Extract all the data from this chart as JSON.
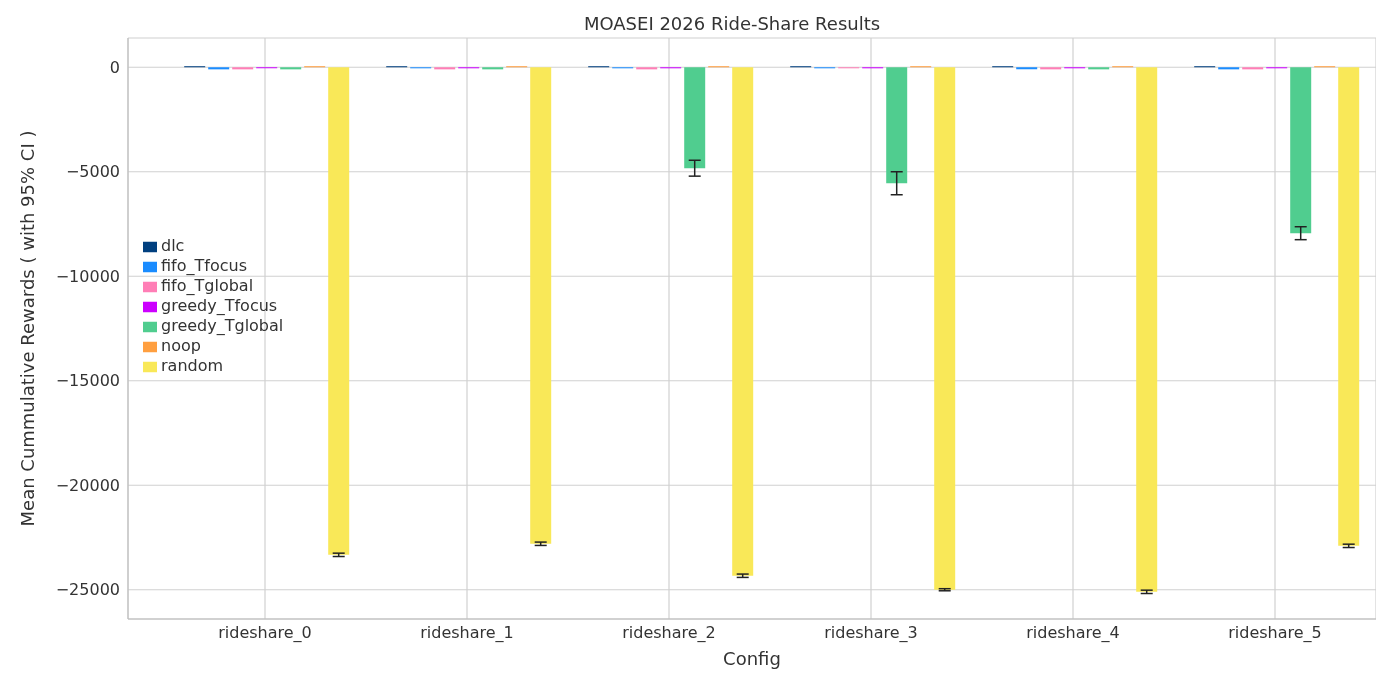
{
  "chart_data": {
    "type": "bar",
    "title": "MOASEI 2026 Ride-Share Results",
    "xlabel": "Config",
    "ylabel": "Mean Cummulative Rewards ( with 95% CI )",
    "categories": [
      "rideshare_0",
      "rideshare_1",
      "rideshare_2",
      "rideshare_3",
      "rideshare_4",
      "rideshare_5"
    ],
    "series": [
      {
        "name": "dlc",
        "color": "#003f7f",
        "values": [
          50,
          50,
          50,
          50,
          50,
          50
        ]
      },
      {
        "name": "fifo_Tfocus",
        "color": "#1a8cff",
        "values": [
          -100,
          -50,
          -50,
          -50,
          -100,
          -100
        ]
      },
      {
        "name": "fifo_Tglobal",
        "color": "#ff7eb6",
        "values": [
          -100,
          -100,
          -100,
          -50,
          -100,
          -100
        ]
      },
      {
        "name": "greedy_Tfocus",
        "color": "#cc00ff",
        "values": [
          -50,
          -50,
          -50,
          -50,
          -50,
          -50
        ]
      },
      {
        "name": "greedy_Tglobal",
        "color": "#50cd8f",
        "values": [
          -100,
          -100,
          -4830,
          -5550,
          -100,
          -7940
        ],
        "errors": [
          null,
          null,
          380,
          550,
          null,
          310
        ]
      },
      {
        "name": "noop",
        "color": "#ff9f40",
        "values": [
          50,
          50,
          50,
          50,
          50,
          50
        ]
      },
      {
        "name": "random",
        "color": "#f9e858",
        "values": [
          -23330,
          -22800,
          -24330,
          -25000,
          -25100,
          -22900
        ],
        "errors": [
          80,
          80,
          80,
          50,
          80,
          80
        ]
      }
    ],
    "ylim": [
      -26400,
      1400
    ],
    "yticks": [
      0,
      -5000,
      -10000,
      -15000,
      -20000,
      -25000
    ],
    "grid": true,
    "legend": "left"
  }
}
